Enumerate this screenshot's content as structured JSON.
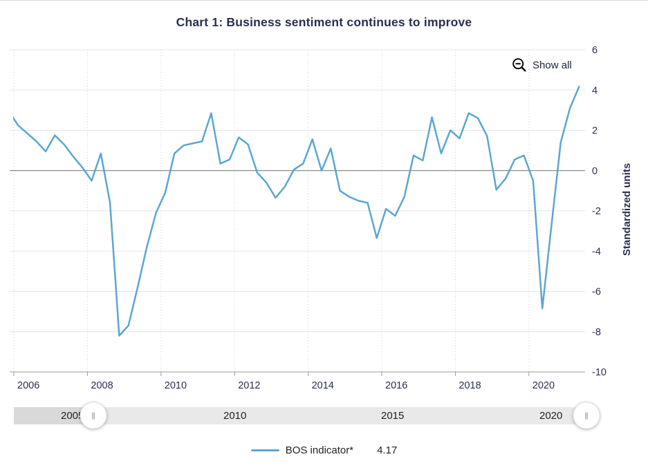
{
  "title": "Chart 1: Business sentiment continues to improve",
  "controls": {
    "show_all_label": "Show all"
  },
  "legend": {
    "series_label": "BOS indicator*",
    "value": "4.17"
  },
  "y_axis": {
    "title": "Standardized units",
    "ticks": [
      6,
      4,
      2,
      0,
      -2,
      -4,
      -6,
      -8,
      -10
    ],
    "min": -10,
    "max": 6
  },
  "x_axis": {
    "tick_years": [
      2006,
      2008,
      2010,
      2012,
      2014,
      2016,
      2018,
      2020
    ]
  },
  "navigator": {
    "labels": [
      {
        "text": "2005",
        "x": 88
      },
      {
        "text": "2010",
        "x": 323
      },
      {
        "text": "2015",
        "x": 551
      },
      {
        "text": "2020",
        "x": 780
      }
    ]
  },
  "colors": {
    "line": "#5AA7D1",
    "navy_text": "#2A2E51",
    "grid": "#E6E6E6",
    "zero_line": "#6F6F6F",
    "axis_line": "#9B9B9B",
    "vgrid": "#CDCDCD",
    "nav_track": "#E9E9E9",
    "nav_mask": "#D9D9D9",
    "nav_text": "#222222",
    "legend_text": "#222222",
    "show_all_text": "#1E2138",
    "icon": "#000000"
  },
  "chart_data": {
    "type": "line",
    "title": "Chart 1: Business sentiment continues to improve",
    "xlabel": "",
    "ylabel": "Standardized units",
    "ylim": [
      -10,
      6
    ],
    "grid": "horizontal solid, vertical dotted per year",
    "legend_position": "bottom center",
    "x": [
      "2005 Q4",
      "2006 Q1",
      "2006 Q2",
      "2006 Q3",
      "2006 Q4",
      "2007 Q1",
      "2007 Q2",
      "2007 Q3",
      "2007 Q4",
      "2008 Q1",
      "2008 Q2",
      "2008 Q3",
      "2008 Q4",
      "2009 Q1",
      "2009 Q2",
      "2009 Q3",
      "2009 Q4",
      "2010 Q1",
      "2010 Q2",
      "2010 Q3",
      "2010 Q4",
      "2011 Q1",
      "2011 Q2",
      "2011 Q3",
      "2011 Q4",
      "2012 Q1",
      "2012 Q2",
      "2012 Q3",
      "2012 Q4",
      "2013 Q1",
      "2013 Q2",
      "2013 Q3",
      "2013 Q4",
      "2014 Q1",
      "2014 Q2",
      "2014 Q3",
      "2014 Q4",
      "2015 Q1",
      "2015 Q2",
      "2015 Q3",
      "2015 Q4",
      "2016 Q1",
      "2016 Q2",
      "2016 Q3",
      "2016 Q4",
      "2017 Q1",
      "2017 Q2",
      "2017 Q3",
      "2017 Q4",
      "2018 Q1",
      "2018 Q2",
      "2018 Q3",
      "2018 Q4",
      "2019 Q1",
      "2019 Q2",
      "2019 Q3",
      "2019 Q4",
      "2020 Q1",
      "2020 Q2",
      "2020 Q3",
      "2020 Q4",
      "2021 Q1",
      "2021 Q2"
    ],
    "series": [
      {
        "name": "BOS indicator*",
        "last_value": 4.17,
        "values": [
          2.95,
          2.25,
          1.85,
          1.45,
          0.95,
          1.75,
          1.3,
          0.7,
          0.15,
          -0.5,
          0.85,
          -1.6,
          -8.2,
          -7.7,
          -5.8,
          -3.8,
          -2.1,
          -1.1,
          0.85,
          1.25,
          1.35,
          1.45,
          2.85,
          0.35,
          0.55,
          1.65,
          1.3,
          -0.1,
          -0.6,
          -1.35,
          -0.8,
          0.05,
          0.35,
          1.55,
          0.0,
          1.1,
          -1.0,
          -1.3,
          -1.5,
          -1.6,
          -3.35,
          -1.9,
          -2.25,
          -1.3,
          0.75,
          0.5,
          2.65,
          0.85,
          2.0,
          1.6,
          2.85,
          2.6,
          1.7,
          -0.95,
          -0.4,
          0.55,
          0.75,
          -0.5,
          -6.85,
          -2.7,
          1.4,
          3.1,
          4.17
        ]
      }
    ]
  }
}
